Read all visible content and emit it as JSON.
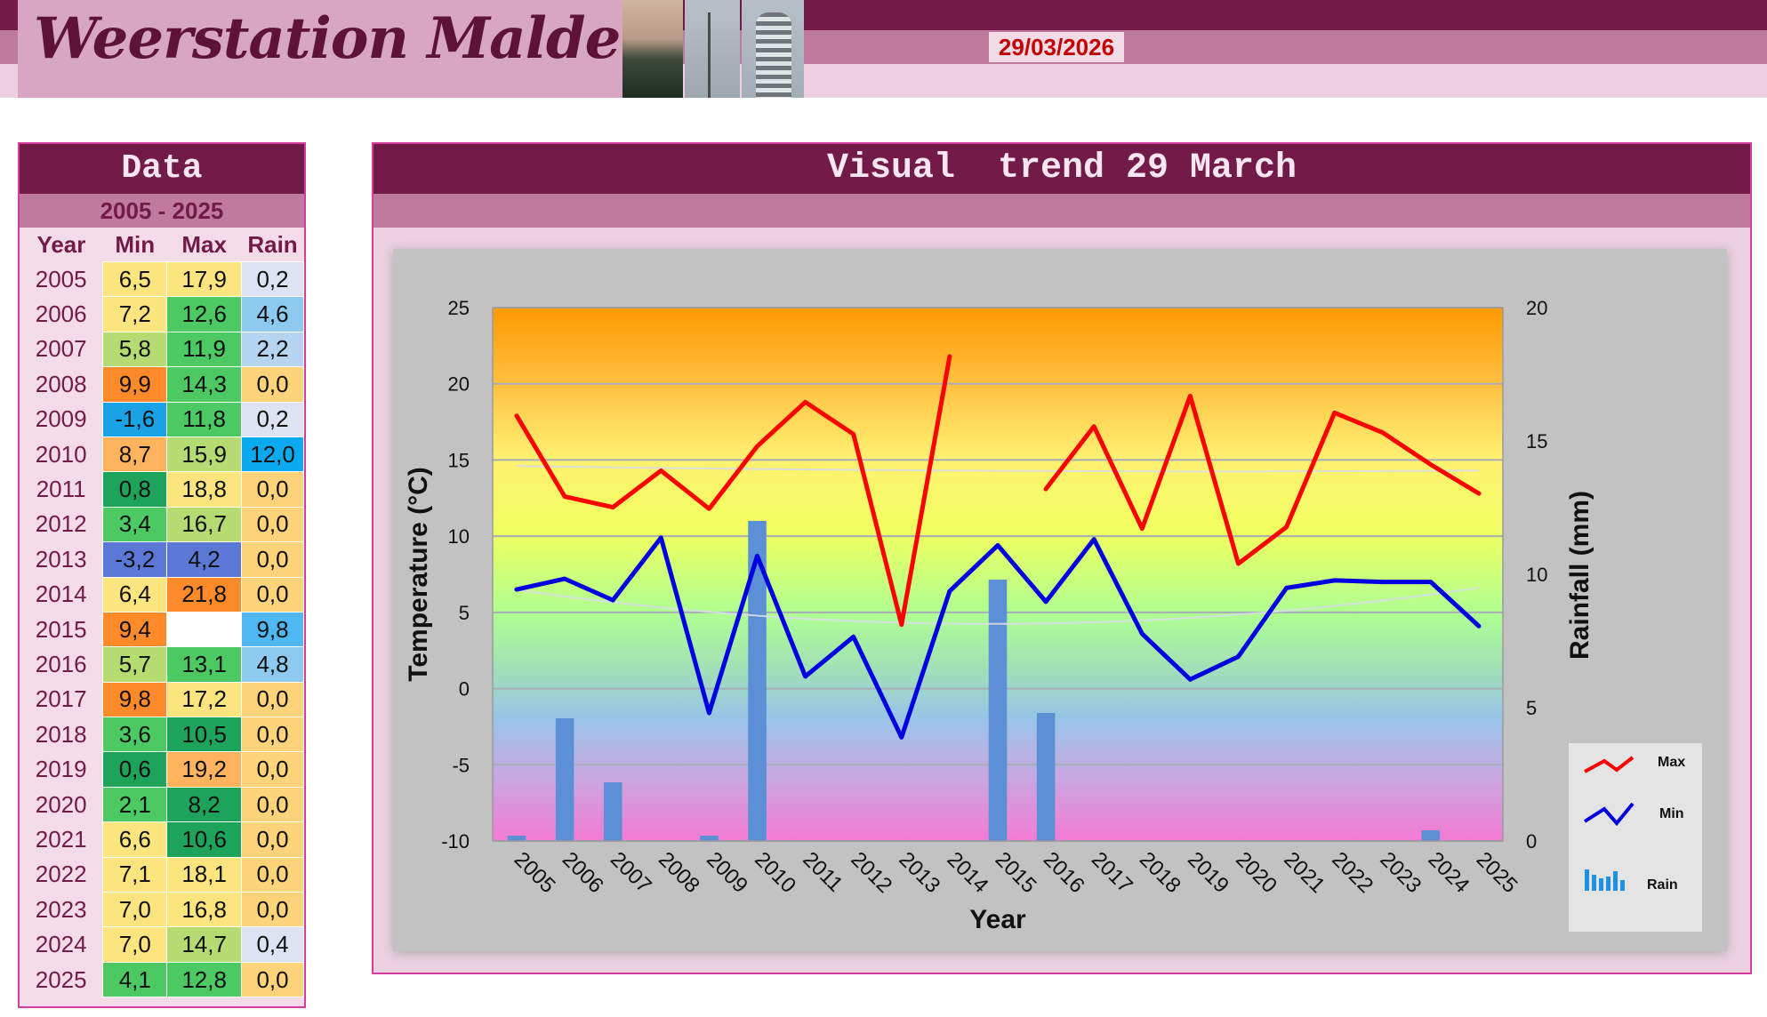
{
  "header": {
    "site_title": "Weerstation Malderen",
    "date": "29/03/2026"
  },
  "data_panel": {
    "title": "Data",
    "range": "2005 - 2025",
    "columns": [
      "Year",
      "Min",
      "Max",
      "Rain"
    ],
    "rows": [
      {
        "year": "2005",
        "min": "6,5",
        "max": "17,9",
        "rain": "0,2"
      },
      {
        "year": "2006",
        "min": "7,2",
        "max": "12,6",
        "rain": "4,6"
      },
      {
        "year": "2007",
        "min": "5,8",
        "max": "11,9",
        "rain": "2,2"
      },
      {
        "year": "2008",
        "min": "9,9",
        "max": "14,3",
        "rain": "0,0"
      },
      {
        "year": "2009",
        "min": "-1,6",
        "max": "11,8",
        "rain": "0,2"
      },
      {
        "year": "2010",
        "min": "8,7",
        "max": "15,9",
        "rain": "12,0"
      },
      {
        "year": "2011",
        "min": "0,8",
        "max": "18,8",
        "rain": "0,0"
      },
      {
        "year": "2012",
        "min": "3,4",
        "max": "16,7",
        "rain": "0,0"
      },
      {
        "year": "2013",
        "min": "-3,2",
        "max": "4,2",
        "rain": "0,0"
      },
      {
        "year": "2014",
        "min": "6,4",
        "max": "21,8",
        "rain": "0,0"
      },
      {
        "year": "2015",
        "min": "9,4",
        "max": "",
        "rain": "9,8"
      },
      {
        "year": "2016",
        "min": "5,7",
        "max": "13,1",
        "rain": "4,8"
      },
      {
        "year": "2017",
        "min": "9,8",
        "max": "17,2",
        "rain": "0,0"
      },
      {
        "year": "2018",
        "min": "3,6",
        "max": "10,5",
        "rain": "0,0"
      },
      {
        "year": "2019",
        "min": "0,6",
        "max": "19,2",
        "rain": "0,0"
      },
      {
        "year": "2020",
        "min": "2,1",
        "max": "8,2",
        "rain": "0,0"
      },
      {
        "year": "2021",
        "min": "6,6",
        "max": "10,6",
        "rain": "0,0"
      },
      {
        "year": "2022",
        "min": "7,1",
        "max": "18,1",
        "rain": "0,0"
      },
      {
        "year": "2023",
        "min": "7,0",
        "max": "16,8",
        "rain": "0,0"
      },
      {
        "year": "2024",
        "min": "7,0",
        "max": "14,7",
        "rain": "0,4"
      },
      {
        "year": "2025",
        "min": "4,1",
        "max": "12,8",
        "rain": "0,0"
      }
    ]
  },
  "chart_panel": {
    "title": "Visual  trend 29 March"
  },
  "chart_data": {
    "type": "line",
    "title": "",
    "xlabel": "Year",
    "ylabel": "Temperature (°C)",
    "y2label": "Rainfall (mm)",
    "ylim": [
      -10,
      25
    ],
    "y2lim": [
      0,
      20
    ],
    "yticks": [
      -10,
      -5,
      0,
      5,
      10,
      15,
      20,
      25
    ],
    "y2ticks": [
      0,
      5,
      10,
      15,
      20
    ],
    "x": [
      "2005",
      "2006",
      "2007",
      "2008",
      "2009",
      "2010",
      "2011",
      "2012",
      "2013",
      "2014",
      "2015",
      "2016",
      "2017",
      "2018",
      "2019",
      "2020",
      "2021",
      "2022",
      "2023",
      "2024",
      "2025"
    ],
    "series": [
      {
        "name": "Max",
        "type": "line",
        "axis": "left",
        "color": "#ff0000",
        "values": [
          17.9,
          12.6,
          11.9,
          14.3,
          11.8,
          15.9,
          18.8,
          16.7,
          4.2,
          21.8,
          null,
          13.1,
          17.2,
          10.5,
          19.2,
          8.2,
          10.6,
          18.1,
          16.8,
          14.7,
          12.8
        ]
      },
      {
        "name": "Min",
        "type": "line",
        "axis": "left",
        "color": "#0000e0",
        "values": [
          6.5,
          7.2,
          5.8,
          9.9,
          -1.6,
          8.7,
          0.8,
          3.4,
          -3.2,
          6.4,
          9.4,
          5.7,
          9.8,
          3.6,
          0.6,
          2.1,
          6.6,
          7.1,
          7.0,
          7.0,
          4.1
        ]
      },
      {
        "name": "Rain",
        "type": "bar",
        "axis": "right",
        "color": "#5b8fd6",
        "values": [
          0.2,
          4.6,
          2.2,
          0.0,
          0.2,
          12.0,
          0.0,
          0.0,
          0.0,
          0.0,
          9.8,
          4.8,
          0.0,
          0.0,
          0.0,
          0.0,
          0.0,
          0.0,
          0.0,
          0.4,
          0.0
        ]
      }
    ],
    "legend": [
      "Max",
      "Min",
      "Rain"
    ],
    "legend_position": "bottom-right",
    "grid": true,
    "trendlines": true,
    "background": "rainbow gradient"
  }
}
